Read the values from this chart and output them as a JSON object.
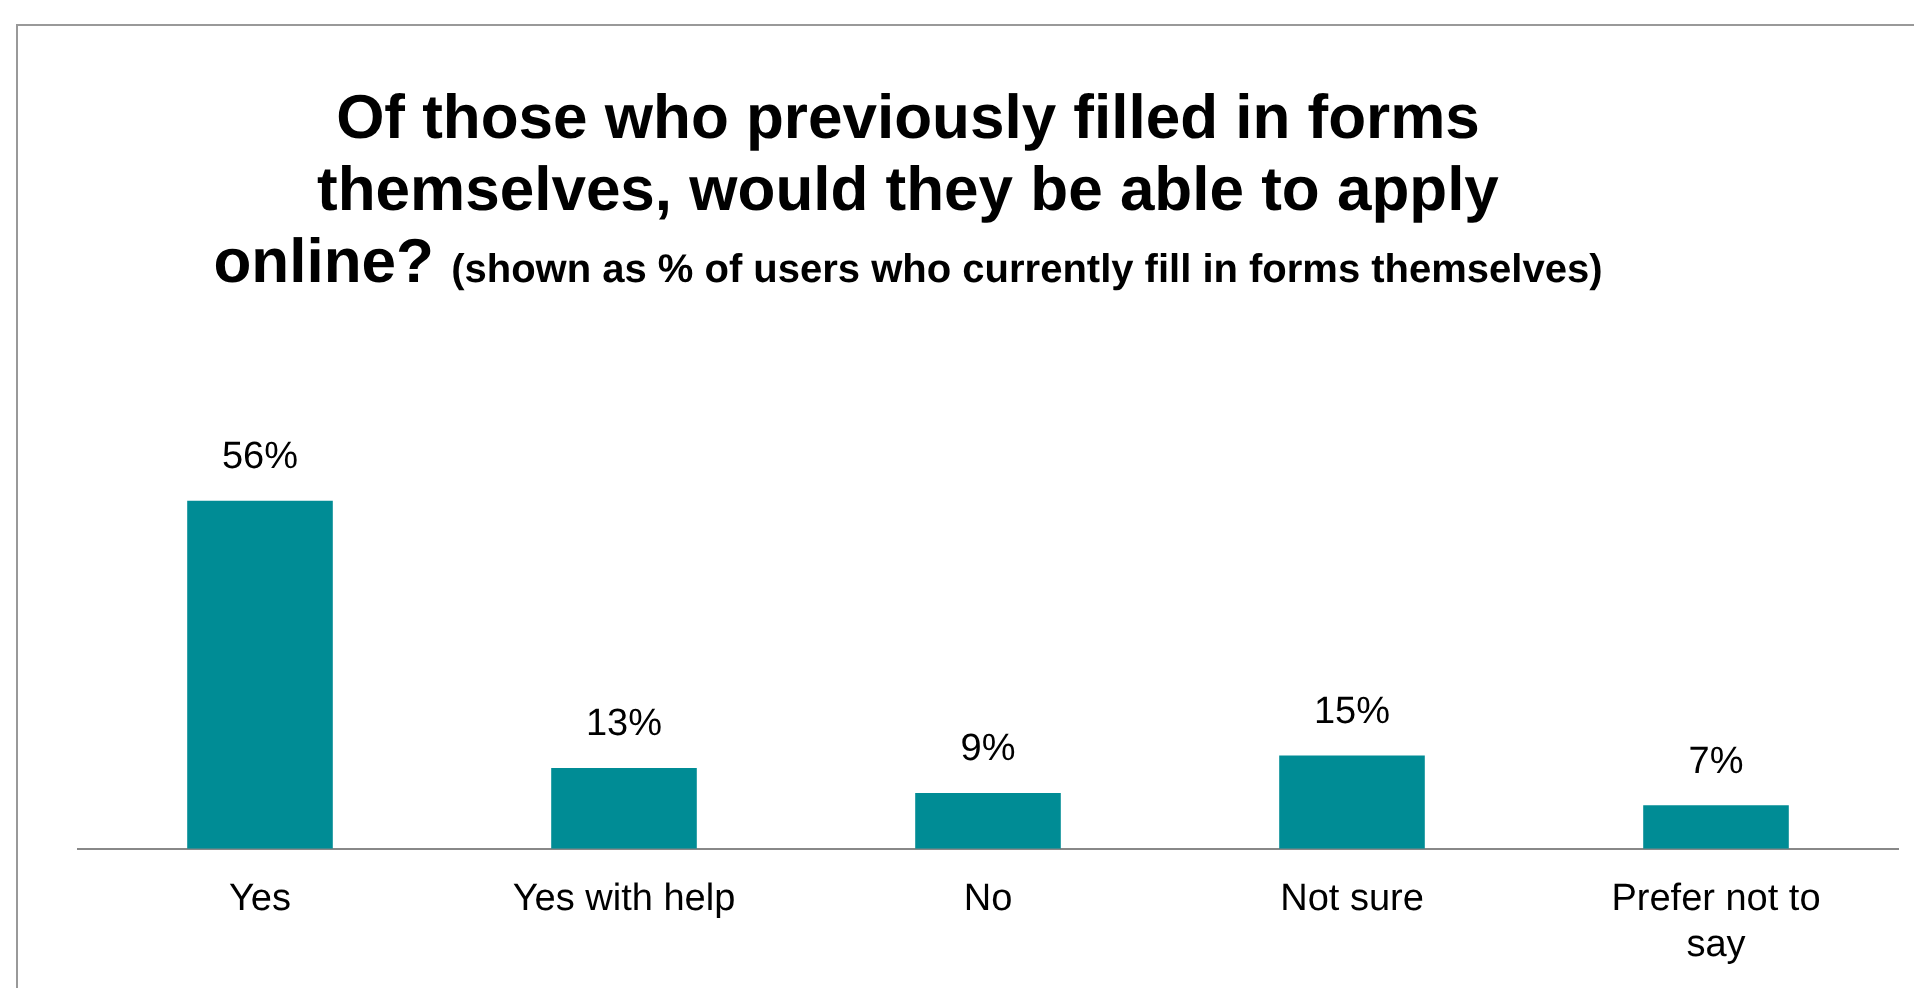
{
  "chart_data": {
    "type": "bar",
    "title": "Of those who previously filled in forms themselves, would they be able to apply online?",
    "subtitle": "(shown as % of users who currently fill in forms themselves)",
    "categories": [
      "Yes",
      "Yes with help",
      "No",
      "Not sure",
      "Prefer not to say"
    ],
    "values": [
      56,
      13,
      9,
      15,
      7
    ],
    "value_labels": [
      "56%",
      "13%",
      "9%",
      "15%",
      "7%"
    ],
    "color": "#008c95",
    "grid": false,
    "legend": false
  }
}
